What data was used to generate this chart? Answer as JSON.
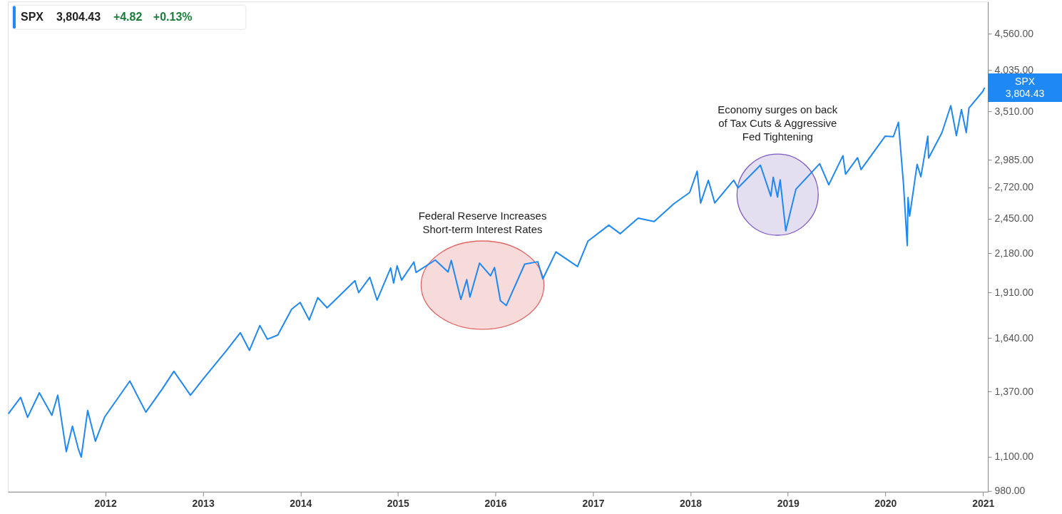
{
  "chart_data": {
    "type": "line",
    "log": true,
    "legend": "top left",
    "grid": false,
    "marker": "none",
    "line_style": "solid",
    "xlim": [
      "2011-01-01",
      "2021-01-19"
    ],
    "xticks": [
      "2012",
      "2013",
      "2014",
      "2015",
      "2016",
      "2017",
      "2018",
      "2019",
      "2020",
      "2021"
    ],
    "ylim": [
      978,
      5080
    ],
    "yticks": [
      {
        "value": 980,
        "label": "980.00"
      },
      {
        "value": 1100,
        "label": "1,100.00"
      },
      {
        "value": 1370,
        "label": "1,370.00"
      },
      {
        "value": 1640,
        "label": "1,640.00"
      },
      {
        "value": 1910,
        "label": "1,910.00"
      },
      {
        "value": 2180,
        "label": "2,180.00"
      },
      {
        "value": 2450,
        "label": "2,450.00"
      },
      {
        "value": 2720,
        "label": "2,720.00"
      },
      {
        "value": 2985,
        "label": "2,985.00"
      },
      {
        "value": 3510,
        "label": "3,510.00"
      },
      {
        "value": 4035,
        "label": "4,035.00"
      },
      {
        "value": 4560,
        "label": "4,560.00"
      }
    ],
    "series": [
      {
        "name": "SPX",
        "color": "#1e88f5",
        "x": [
          "2011-01-03",
          "2011-02-18",
          "2011-03-16",
          "2011-04-29",
          "2011-06-15",
          "2011-07-07",
          "2011-08-08",
          "2011-08-31",
          "2011-09-22",
          "2011-10-03",
          "2011-10-27",
          "2011-11-25",
          "2011-12-30",
          "2012-04-02",
          "2012-06-01",
          "2012-07-31",
          "2012-09-14",
          "2012-11-15",
          "2012-12-31",
          "2013-03-28",
          "2013-05-21",
          "2013-06-24",
          "2013-08-02",
          "2013-08-30",
          "2013-10-08",
          "2013-11-29",
          "2013-12-31",
          "2014-02-03",
          "2014-03-07",
          "2014-04-11",
          "2014-07-24",
          "2014-08-07",
          "2014-09-18",
          "2014-10-15",
          "2014-12-05",
          "2014-12-16",
          "2014-12-29",
          "2015-01-15",
          "2015-03-02",
          "2015-03-10",
          "2015-05-21",
          "2015-07-08",
          "2015-07-20",
          "2015-08-25",
          "2015-09-16",
          "2015-09-28",
          "2015-11-03",
          "2015-12-14",
          "2015-12-29",
          "2016-01-20",
          "2016-02-11",
          "2016-04-20",
          "2016-06-08",
          "2016-06-27",
          "2016-08-15",
          "2016-11-04",
          "2016-12-13",
          "2017-03-01",
          "2017-04-13",
          "2017-06-19",
          "2017-08-18",
          "2017-10-31",
          "2017-12-29",
          "2018-01-26",
          "2018-02-08",
          "2018-03-09",
          "2018-04-02",
          "2018-06-12",
          "2018-06-28",
          "2018-09-20",
          "2018-10-29",
          "2018-11-07",
          "2018-11-23",
          "2018-12-03",
          "2018-12-24",
          "2019-01-31",
          "2019-04-30",
          "2019-06-03",
          "2019-07-26",
          "2019-08-05",
          "2019-09-19",
          "2019-10-02",
          "2019-12-31",
          "2020-01-31",
          "2020-02-19",
          "2020-03-09",
          "2020-03-23",
          "2020-03-26",
          "2020-04-01",
          "2020-04-29",
          "2020-05-13",
          "2020-06-08",
          "2020-06-11",
          "2020-07-31",
          "2020-09-02",
          "2020-09-23",
          "2020-10-12",
          "2020-10-30",
          "2020-11-09",
          "2020-12-31",
          "2021-01-07"
        ],
        "values": [
          1271,
          1343,
          1256,
          1364,
          1265,
          1353,
          1119,
          1219,
          1129,
          1099,
          1285,
          1159,
          1258,
          1419,
          1278,
          1379,
          1466,
          1353,
          1426,
          1569,
          1669,
          1573,
          1710,
          1633,
          1656,
          1806,
          1848,
          1742,
          1878,
          1815,
          1988,
          1910,
          2011,
          1862,
          2075,
          1972,
          2090,
          1992,
          2117,
          2044,
          2131,
          2047,
          2128,
          1867,
          1995,
          1881,
          2109,
          2021,
          2078,
          1859,
          1829,
          2102,
          2119,
          2000,
          2190,
          2085,
          2271,
          2396,
          2328,
          2453,
          2425,
          2575,
          2674,
          2873,
          2581,
          2786,
          2582,
          2787,
          2716,
          2931,
          2641,
          2814,
          2633,
          2790,
          2351,
          2704,
          2946,
          2744,
          3026,
          2844,
          3006,
          2888,
          3231,
          3226,
          3386,
          2747,
          2237,
          2630,
          2470,
          2940,
          2820,
          3232,
          3002,
          3271,
          3580,
          3237,
          3534,
          3270,
          3551,
          3756,
          3804.43
        ]
      }
    ],
    "annotations": [
      "3,804.43",
      "+4.82",
      "+0.13%",
      "Federal Reserve Increases\nShort-term Interest Rates",
      "Economy surges on back\nof Tax Cuts & Aggressive\nFed Tightening"
    ]
  }
}
